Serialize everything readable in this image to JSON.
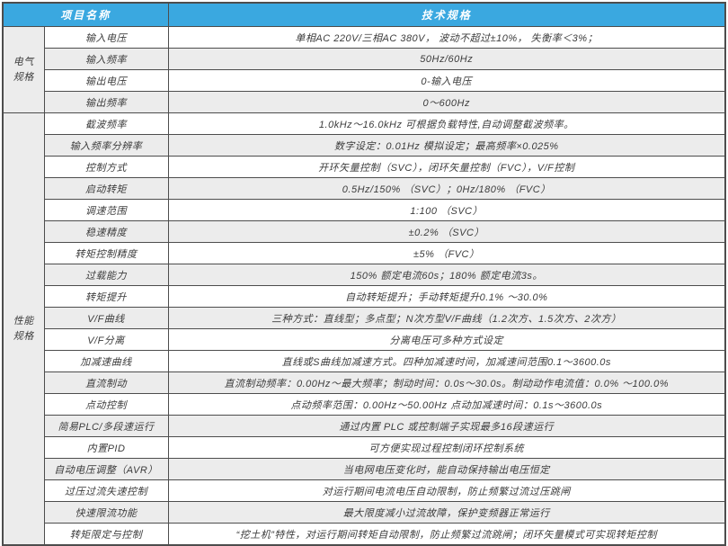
{
  "table": {
    "header": {
      "item_col_label": "项目名称",
      "spec_col_label": "技术规格"
    },
    "colors": {
      "header_bg": "#3AA8E0",
      "header_text": "#FFFFFF",
      "shaded_row_bg": "#ECECEC",
      "border": "#4D4D4D",
      "text": "#3C3C3C"
    },
    "groups": [
      {
        "name": "电气规格",
        "name_lines": [
          "电气",
          "规格"
        ],
        "rows": [
          {
            "item": "输入电压",
            "spec": "单相AC 220V/三相AC 380V， 波动不超过±10%， 失衡率＜3%；",
            "shaded": false
          },
          {
            "item": "输入频率",
            "spec": "50Hz/60Hz",
            "shaded": true
          },
          {
            "item": "输出电压",
            "spec": "0-输入电压",
            "shaded": false
          },
          {
            "item": "输出频率",
            "spec": "0～600Hz",
            "shaded": true
          }
        ]
      },
      {
        "name": "性能规格",
        "name_lines": [
          "性能",
          "规格"
        ],
        "rows": [
          {
            "item": "截波频率",
            "spec": "1.0kHz～16.0kHz 可根据负载特性,自动调整截波频率。",
            "shaded": false
          },
          {
            "item": "输入频率分辨率",
            "spec": "数字设定：0.01Hz 模拟设定；最高频率×0.025%",
            "shaded": true
          },
          {
            "item": "控制方式",
            "spec": "开环矢量控制（SVC），闭环矢量控制（FVC），V/F控制",
            "shaded": false
          },
          {
            "item": "启动转矩",
            "spec": "0.5Hz/150% （SVC）；0Hz/180% （FVC）",
            "shaded": true
          },
          {
            "item": "调速范围",
            "spec": "1:100 （SVC）",
            "shaded": false
          },
          {
            "item": "稳速精度",
            "spec": "±0.2% （SVC）",
            "shaded": true
          },
          {
            "item": "转矩控制精度",
            "spec": "±5% （FVC）",
            "shaded": false
          },
          {
            "item": "过载能力",
            "spec": "150% 额定电流60s；180% 额定电流3s。",
            "shaded": true
          },
          {
            "item": "转矩提升",
            "spec": "自动转矩提升；手动转矩提升0.1% ～30.0%",
            "shaded": false
          },
          {
            "item": "V/F曲线",
            "spec": "三种方式：直线型；多点型；N次方型V/F曲线（1.2次方、1.5次方、2次方）",
            "shaded": true
          },
          {
            "item": "V/F分离",
            "spec": "分离电压可多种方式设定",
            "shaded": false
          },
          {
            "item": "加减速曲线",
            "spec": "直线或S曲线加减速方式。四种加减速时间，加减速间范围0.1～3600.0s",
            "shaded": false
          },
          {
            "item": "直流制动",
            "spec": "直流制动频率：0.00Hz～最大频率；制动时间：0.0s～30.0s。制动动作电流值：0.0% ～100.0%",
            "shaded": true
          },
          {
            "item": "点动控制",
            "spec": "点动频率范围：0.00Hz～50.00Hz 点动加减速时间：0.1s～3600.0s",
            "shaded": false
          },
          {
            "item": "简易PLC/多段速运行",
            "spec": "通过内置 PLC 或控制端子实现最多16段速运行",
            "shaded": true
          },
          {
            "item": "内置PID",
            "spec": "可方便实现过程控制闭环控制系统",
            "shaded": false
          },
          {
            "item": "自动电压调整（AVR）",
            "spec": "当电网电压变化时，能自动保持输出电压恒定",
            "shaded": true
          },
          {
            "item": "过压过流失速控制",
            "spec": "对运行期间电流电压自动限制，防止频繁过流过压跳闸",
            "shaded": false
          },
          {
            "item": "快速限流功能",
            "spec": "最大限度减小过流故障，保护变频器正常运行",
            "shaded": true
          },
          {
            "item": "转矩限定与控制",
            "spec": "“挖土机”特性，对运行期间转矩自动限制，防止频繁过流跳闸；闭环矢量模式可实现转矩控制",
            "shaded": false
          }
        ]
      }
    ]
  }
}
